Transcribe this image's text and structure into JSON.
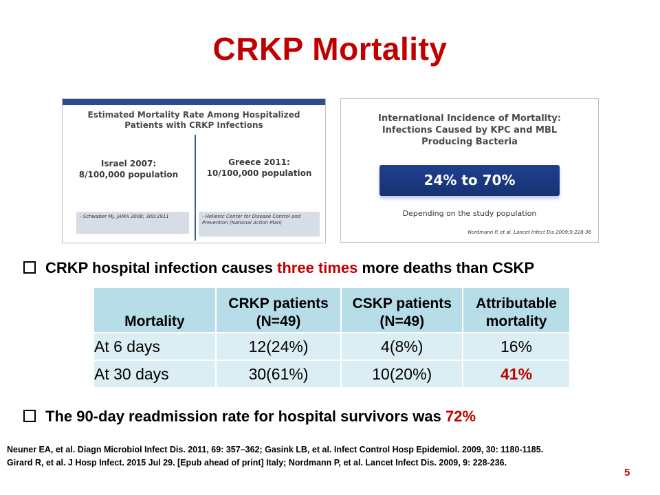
{
  "slide": {
    "title": "CRKP Mortality",
    "page_number": "5"
  },
  "left_panel": {
    "title_line1": "Estimated Mortality Rate Among Hospitalized",
    "title_line2": "Patients with CRKP Infections",
    "israel_line1": "Israel 2007:",
    "israel_line2": "8/100,000 population",
    "greece_line1": "Greece 2011:",
    "greece_line2": "10/100,000 population",
    "source_left": "- Schwaber MJ. JAMA 2008; 300:2911",
    "source_right": "- Hellenic Center for Disease Control and Prevention (National Action Plan)"
  },
  "right_panel": {
    "title_line1": "International Incidence of Mortality:",
    "title_line2": "Infections Caused by KPC and MBL",
    "title_line3": "Producing Bacteria",
    "range": "24% to 70%",
    "subtitle": "Depending on the study population",
    "reference": "Nordmann P, et al. Lancet Infect Dis 2009;9:228-36"
  },
  "bullet1": {
    "text_before": "CRKP hospital infection causes ",
    "highlight": "three times",
    "text_after": " more deaths than CSKP"
  },
  "table": {
    "headers": [
      {
        "line1": "Mortality",
        "line2": ""
      },
      {
        "line1": "CRKP patients",
        "line2": "(N=49)"
      },
      {
        "line1": "CSKP patients",
        "line2": "(N=49)"
      },
      {
        "line1": "Attributable",
        "line2": "mortality"
      }
    ],
    "rows": [
      {
        "label": "At 6 days",
        "crkp": "12(24%)",
        "cskp": "4(8%)",
        "attributable": "16%"
      },
      {
        "label": "At 30 days",
        "crkp": "30(61%)",
        "cskp": "10(20%)",
        "attributable": "41%"
      }
    ]
  },
  "bullet2": {
    "text_before": "The 90-day readmission rate for hospital survivors was ",
    "highlight": "72%"
  },
  "references": {
    "line1": "Neuner EA, et al. Diagn Microbiol Infect Dis. 2011,  69: 357–362;  Gasink LB, et al. Infect Control Hosp Epidemiol. 2009, 30: 1180-1185.",
    "line2": "Girard R, et al. J Hosp Infect. 2015 Jul 29. [Epub ahead of print] Italy; Nordmann P, et al. Lancet Infect Dis. 2009, 9: 228-236."
  },
  "colors": {
    "title_red": "#c00000",
    "table_header": "#b7dde8",
    "table_row": "#dbeef3",
    "band_blue": "#1f3f8f"
  }
}
